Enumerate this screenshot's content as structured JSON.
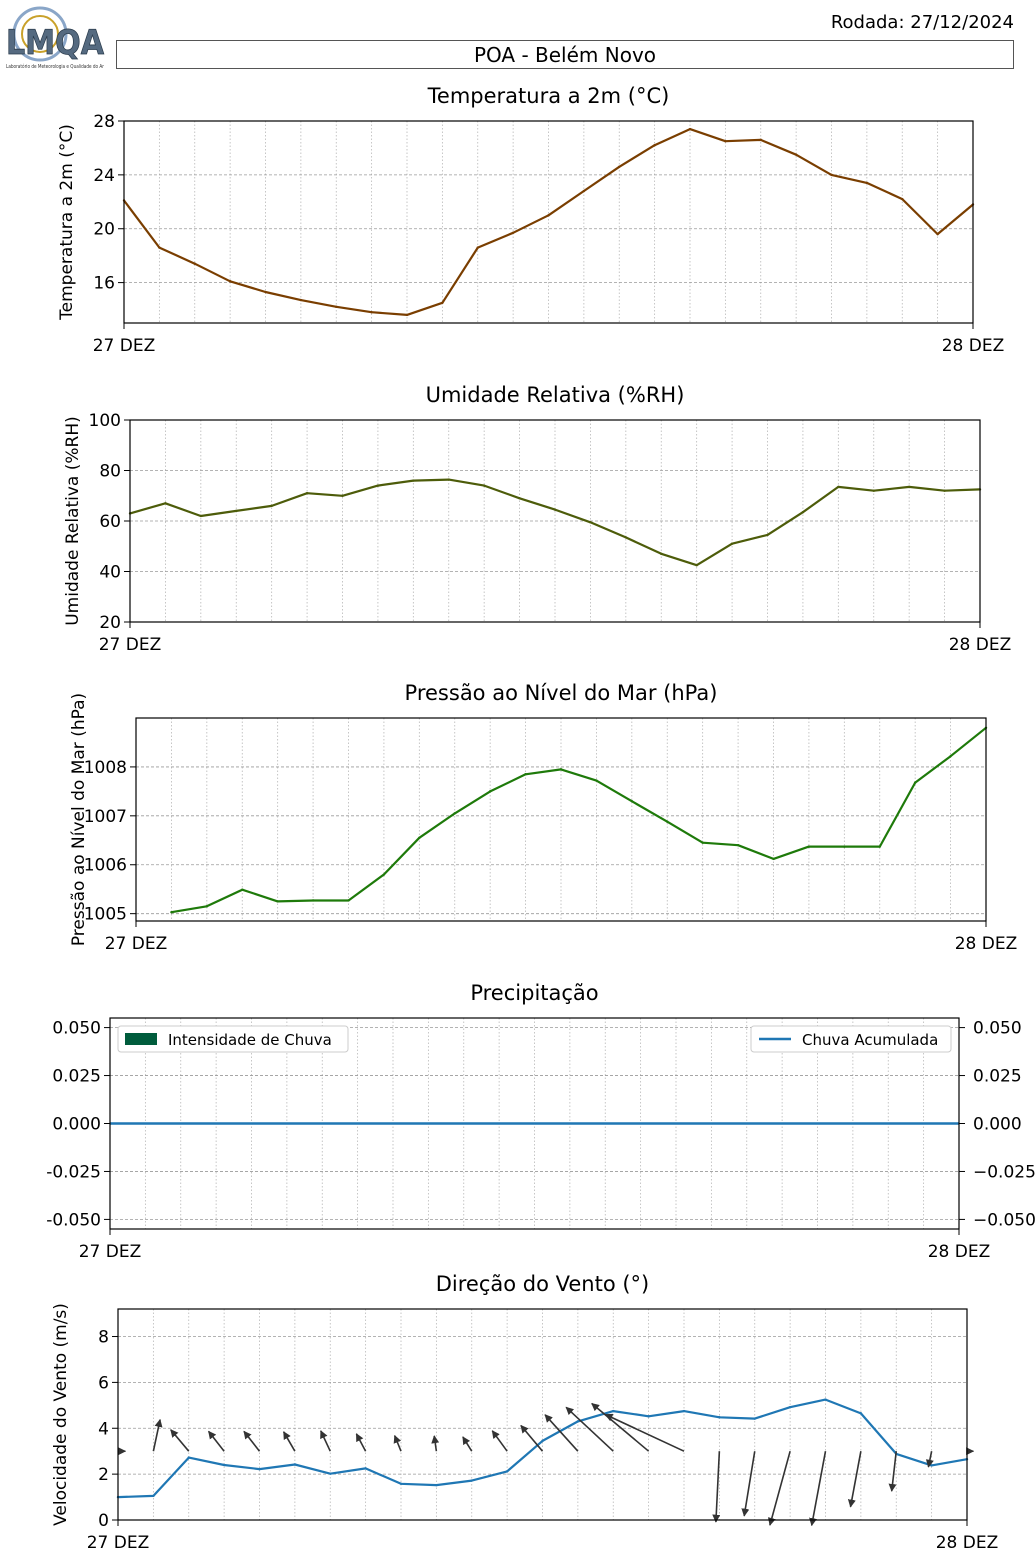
{
  "header": {
    "rodada": "Rodada: 27/12/2024",
    "station": "POA - Belém Novo",
    "logo_text": "LMQA",
    "logo_caption": "Laboratório de Meteorologia e Qualidade do Ar"
  },
  "chart_data": [
    {
      "id": "temperature",
      "type": "line",
      "title": "Temperatura a 2m (°C)",
      "ylabel": "Temperatura a 2m (°C)",
      "xlabel": "",
      "x_start_label": "27 DEZ",
      "x_end_label": "28 DEZ",
      "ylim": [
        13,
        28
      ],
      "yticks": [
        16,
        20,
        24,
        28
      ],
      "grid": true,
      "color": "#7a3e00",
      "x": [
        0,
        1,
        2,
        3,
        4,
        5,
        6,
        7,
        8,
        9,
        10,
        11,
        12,
        13,
        14,
        15,
        16,
        17,
        18,
        19,
        20,
        21,
        22,
        23,
        24
      ],
      "values": [
        22.1,
        18.6,
        17.4,
        16.1,
        15.3,
        14.7,
        14.2,
        13.8,
        13.6,
        14.5,
        18.6,
        19.7,
        21.0,
        22.8,
        24.6,
        26.2,
        27.4,
        26.5,
        26.6,
        25.5,
        24.0,
        23.4,
        22.2,
        19.6,
        21.8
      ]
    },
    {
      "id": "humidity",
      "type": "line",
      "title": "Umidade Relativa (%RH)",
      "ylabel": "Umidade Relativa (%RH)",
      "xlabel": "",
      "x_start_label": "27 DEZ",
      "x_end_label": "28 DEZ",
      "ylim": [
        20,
        100
      ],
      "yticks": [
        20,
        40,
        60,
        80,
        100
      ],
      "grid": true,
      "color": "#4d5c0a",
      "x": [
        0,
        1,
        2,
        3,
        4,
        5,
        6,
        7,
        8,
        9,
        10,
        11,
        12,
        13,
        14,
        15,
        16,
        17,
        18,
        19,
        20,
        21,
        22,
        23,
        24
      ],
      "values": [
        63,
        67,
        62,
        64,
        66,
        71,
        70,
        74,
        76,
        76.4,
        74,
        69,
        64.5,
        59.5,
        53.5,
        47,
        42.5,
        51,
        54.5,
        63.5,
        73.5,
        72,
        73.5,
        72,
        72.5
      ]
    },
    {
      "id": "pressure",
      "type": "line",
      "title": "Pressão ao Nível do Mar (hPa)",
      "ylabel": "Pressão ao Nível do Mar (hPa)",
      "xlabel": "",
      "x_start_label": "27 DEZ",
      "x_end_label": "28 DEZ",
      "ylim": [
        1004.85,
        1009.0
      ],
      "yticks": [
        1005,
        1006,
        1007,
        1008
      ],
      "grid": true,
      "color": "#1e7a0a",
      "x": [
        1,
        2,
        3,
        4,
        5,
        6,
        7,
        8,
        9,
        10,
        11,
        12,
        13,
        14,
        15,
        16,
        17,
        18,
        19,
        20,
        21,
        22,
        23,
        24
      ],
      "values": [
        1005.03,
        1005.15,
        1005.49,
        1005.25,
        1005.27,
        1005.27,
        1005.8,
        1006.55,
        1007.05,
        1007.5,
        1007.85,
        1007.95,
        1007.72,
        1007.3,
        1006.88,
        1006.45,
        1006.4,
        1006.12,
        1006.37,
        1006.37,
        1006.37,
        1007.68,
        1008.22,
        1008.8
      ]
    },
    {
      "id": "precipitation",
      "type": "bar",
      "title": "Precipitação",
      "ylabel": "",
      "xlabel": "",
      "x_start_label": "27 DEZ",
      "x_end_label": "28 DEZ",
      "ylim": [
        -0.055,
        0.055
      ],
      "yticks": [
        "-0.050",
        "-0.025",
        "0.000",
        "0.025",
        "0.050"
      ],
      "right_yticks": [
        "−0.050",
        "−0.025",
        "0.000",
        "0.025",
        "0.050"
      ],
      "grid": true,
      "legend_left": "Intensidade de Chuva",
      "legend_right": "Chuva Acumulada",
      "legend_placement": [
        "upper left",
        "upper right"
      ],
      "bar_color": "#005c3c",
      "line_color": "#1f77b4",
      "series": [
        {
          "name": "Intensidade de Chuva",
          "values": [
            0,
            0,
            0,
            0,
            0,
            0,
            0,
            0,
            0,
            0,
            0,
            0,
            0,
            0,
            0,
            0,
            0,
            0,
            0,
            0,
            0,
            0,
            0,
            0,
            0
          ]
        },
        {
          "name": "Chuva Acumulada",
          "values": [
            0,
            0,
            0,
            0,
            0,
            0,
            0,
            0,
            0,
            0,
            0,
            0,
            0,
            0,
            0,
            0,
            0,
            0,
            0,
            0,
            0,
            0,
            0,
            0,
            0
          ]
        }
      ]
    },
    {
      "id": "wind",
      "type": "line",
      "title": "Direção do Vento (°)",
      "ylabel": "Velocidade do Vento (m/s)",
      "xlabel": "",
      "x_start_label": "27 DEZ",
      "x_end_label": "28 DEZ",
      "ylim": [
        0,
        9.2
      ],
      "yticks": [
        0,
        2,
        4,
        6,
        8
      ],
      "grid": true,
      "color": "#1f77b4",
      "arrow_color": "#333333",
      "x": [
        0,
        1,
        2,
        3,
        4,
        5,
        6,
        7,
        8,
        9,
        10,
        11,
        12,
        13,
        14,
        15,
        16,
        17,
        18,
        19,
        20,
        21,
        22,
        23,
        24
      ],
      "values": [
        1.0,
        1.05,
        2.72,
        2.4,
        2.22,
        2.42,
        2.02,
        2.25,
        1.58,
        1.52,
        1.72,
        2.12,
        3.45,
        4.3,
        4.75,
        4.52,
        4.75,
        4.48,
        4.42,
        4.92,
        5.25,
        4.65,
        2.88,
        2.38,
        2.65
      ],
      "arrows": [
        [
          1.5,
          -1
        ],
        [
          2.3,
          4
        ],
        [
          2,
          4
        ],
        [
          1.8,
          4
        ],
        [
          1.8,
          4
        ],
        [
          1.6,
          4
        ],
        [
          1.6,
          4
        ],
        [
          1.4,
          4
        ],
        [
          1.2,
          4
        ],
        [
          1.1,
          4
        ],
        [
          1.2,
          4
        ],
        [
          1.8,
          4
        ],
        [
          2.4,
          4
        ],
        [
          3.5,
          4
        ],
        [
          4.6,
          4
        ],
        [
          5.3,
          4
        ],
        [
          6.2,
          4
        ],
        [
          5.1,
          -1
        ],
        [
          5.1,
          -1
        ],
        [
          6.7,
          -1
        ],
        [
          6.0,
          -1
        ],
        [
          4.5,
          -1
        ],
        [
          3.0,
          -1
        ],
        [
          1.3,
          -1
        ],
        [
          1.3,
          -1
        ]
      ],
      "arrow_angle_deg": [
        0,
        78,
        130,
        128,
        128,
        120,
        115,
        118,
        112,
        98,
        122,
        126,
        130,
        132,
        137,
        140,
        155,
        98,
        115,
        128,
        118,
        118,
        108,
        120,
        0
      ]
    }
  ]
}
